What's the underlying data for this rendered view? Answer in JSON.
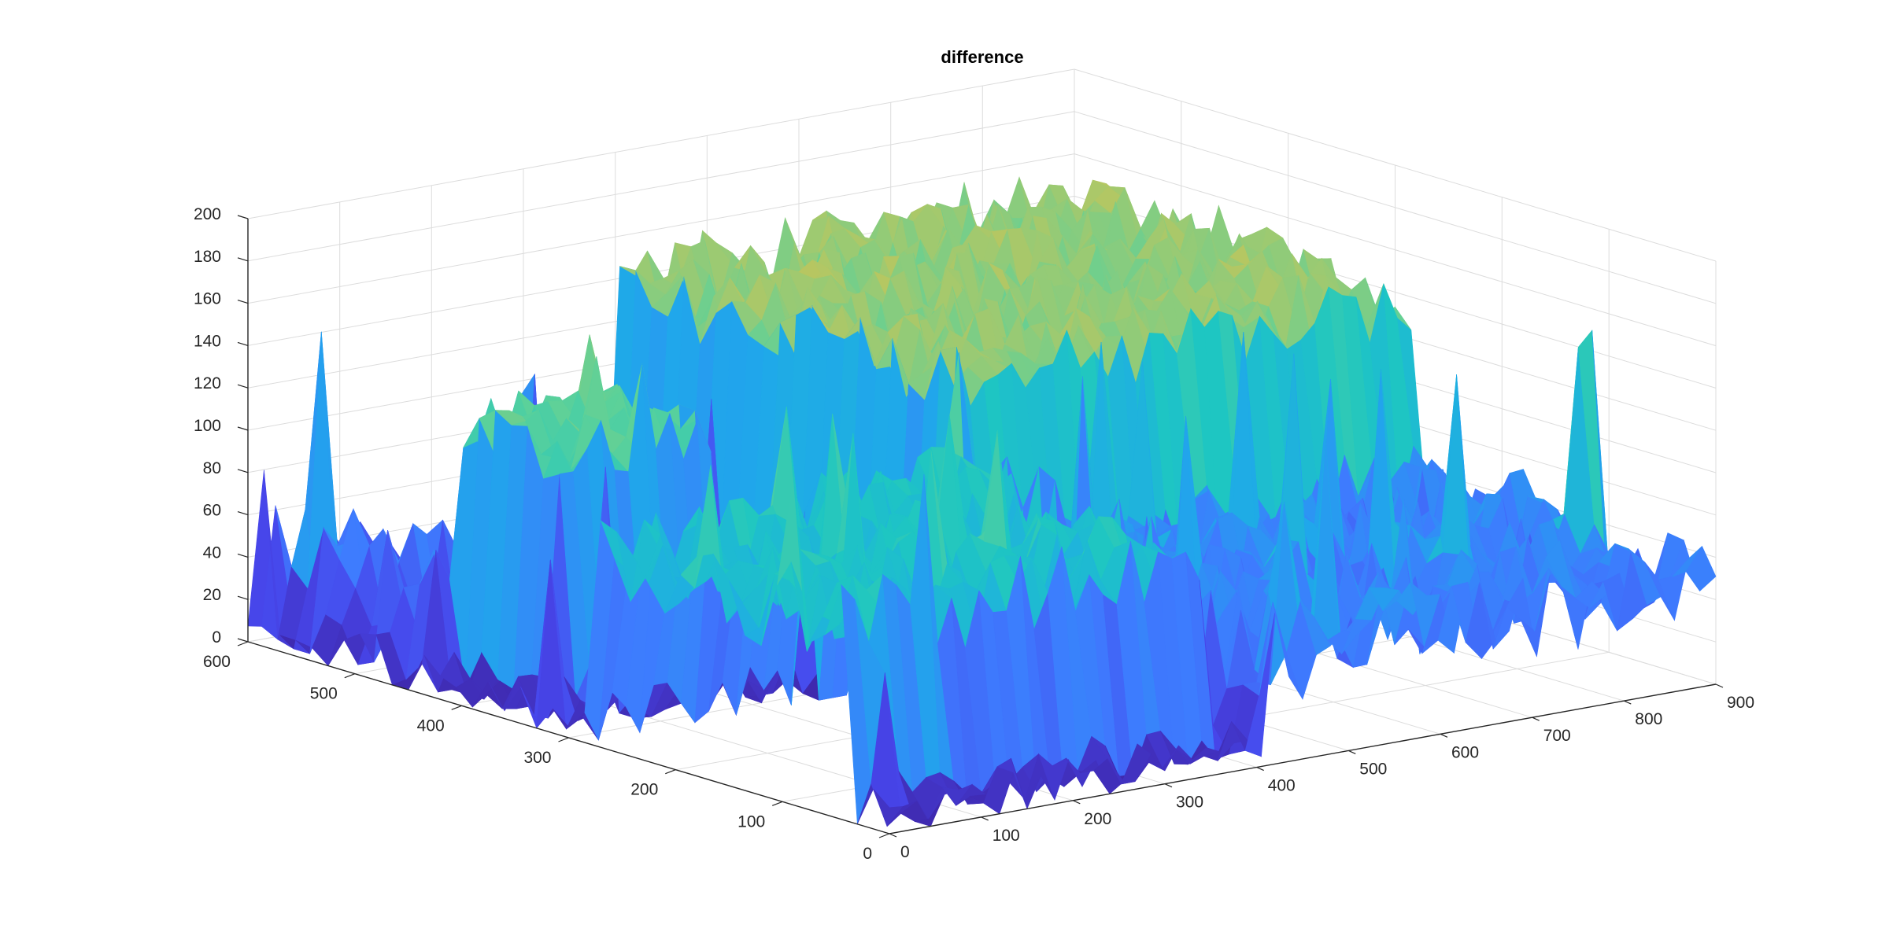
{
  "figure": {
    "background": "#ffffff"
  },
  "chart_data": {
    "type": "surface3d",
    "title": "difference",
    "xlabel": "",
    "ylabel": "",
    "zlabel": "",
    "xlim": [
      0,
      900
    ],
    "ylim": [
      0,
      600
    ],
    "zlim": [
      0,
      200
    ],
    "x_ticks": [
      0,
      100,
      200,
      300,
      400,
      500,
      600,
      700,
      800,
      900
    ],
    "y_ticks": [
      0,
      100,
      200,
      300,
      400,
      500,
      600
    ],
    "z_ticks": [
      0,
      20,
      40,
      60,
      80,
      100,
      120,
      140,
      160,
      180,
      200
    ],
    "grid": true,
    "box": "back planes",
    "colormap": "parula",
    "colormap_stops": [
      "#3e26a8",
      "#4746eb",
      "#3e7bfe",
      "#1fa8ea",
      "#1ec6c2",
      "#5bd19a",
      "#b4c763",
      "#f7ba3c",
      "#f9e51a"
    ],
    "axis_color": "#262626",
    "grid_color": "#dcdcdc",
    "x_grid_count": 61,
    "y_grid_count": 41,
    "regions": [
      {
        "x": [
          0,
          900
        ],
        "y": [
          0,
          600
        ],
        "z_base": 8,
        "z_noise": 14
      },
      {
        "x": [
          400,
          900
        ],
        "y": [
          280,
          600
        ],
        "z_base": 138,
        "z_noise": 18
      },
      {
        "x": [
          0,
          400
        ],
        "y": [
          40,
          280
        ],
        "z_base": 92,
        "z_noise": 22
      },
      {
        "x": [
          60,
          230
        ],
        "y": [
          360,
          460
        ],
        "z_base": 120,
        "z_noise": 14
      },
      {
        "x": [
          420,
          900
        ],
        "y": [
          0,
          280
        ],
        "z_base": 52,
        "z_noise": 24
      },
      {
        "x": [
          20,
          120
        ],
        "y": [
          440,
          600
        ],
        "z_base": 40,
        "z_noise": 30
      }
    ]
  }
}
